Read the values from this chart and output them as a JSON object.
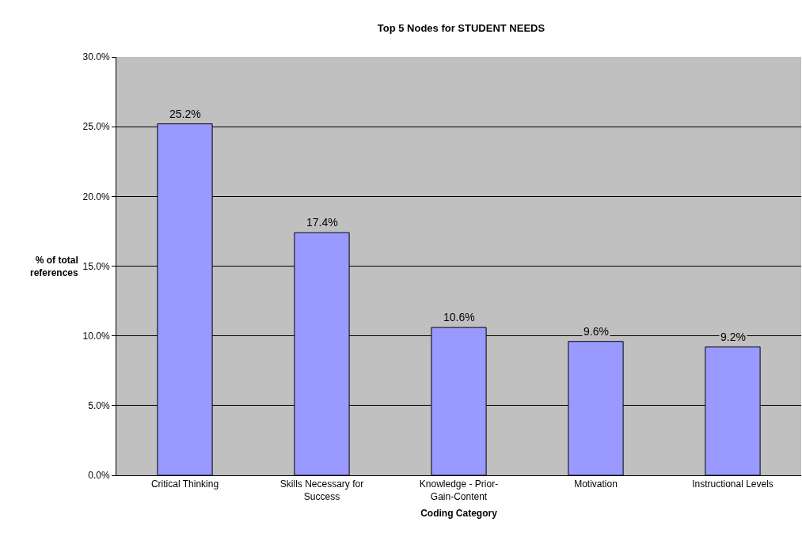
{
  "chart_data": {
    "type": "bar",
    "title": "Top 5 Nodes for STUDENT NEEDS",
    "xlabel": "Coding Category",
    "ylabel": "% of total references",
    "categories": [
      "Critical Thinking",
      "Skills Necessary for Success",
      "Knowledge - Prior-Gain-Content",
      "Motivation",
      "Instructional Levels"
    ],
    "values": [
      25.2,
      17.4,
      10.6,
      9.6,
      9.2
    ],
    "value_labels": [
      "25.2%",
      "17.4%",
      "10.6%",
      "9.6%",
      "9.2%"
    ],
    "color": "#9999ff",
    "ylim": [
      0,
      30
    ],
    "yticks": [
      {
        "value": 0,
        "label": "0.0%"
      },
      {
        "value": 5,
        "label": "5.0%"
      },
      {
        "value": 10,
        "label": "10.0%"
      },
      {
        "value": 15,
        "label": "15.0%"
      },
      {
        "value": 20,
        "label": "20.0%"
      },
      {
        "value": 25,
        "label": "25.0%"
      },
      {
        "value": 30,
        "label": "30.0%"
      }
    ],
    "grid": "y"
  }
}
